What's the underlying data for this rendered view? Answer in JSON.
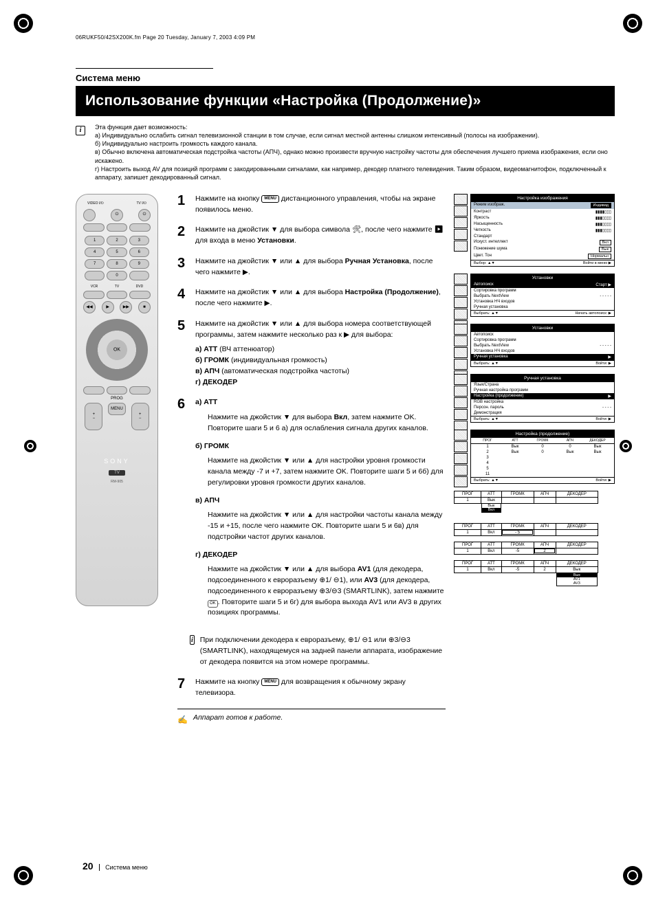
{
  "header_line": "06RUKF50/42SX200K.fm  Page 20  Tuesday, January 7, 2003  4:09 PM",
  "section": "Система меню",
  "title": "Использование функции «Настройка (Продолжение)»",
  "intro": {
    "lead": "Эта функция дает возможность:",
    "a": "а) Индивидуально ослабить сигнал телевизионной станции в том случае, если сигнал местной антенны слишком интенсивный (полосы на изображении).",
    "b": "б) Индивидуально настроить громкость каждого канала.",
    "c": "в) Обычно включена автоматическая подстройка частоты (АПЧ), однако можно произвести вручную настройку частоты для обеспечения лучшего приема изображения, если оно искажено.",
    "d": "г) Настроить выход AV для позиций программ с закодированными сигналами, как например, декодер платного телевидения. Таким образом, видеомагнитофон, подключенный к аппарату, запишет декодированный сигнал."
  },
  "steps": {
    "1": "Нажмите на кнопку MENU дистанционного управления, чтобы на экране появилось меню.",
    "2_a": "Нажмите на джойстик ▼ для выбора символа 🛠, после чего нажмите ",
    "2_b": "▶ для входа в меню ",
    "2_bold": "Установки",
    "3_a": "Нажмите на джойстик ▼ или ▲ для выбора ",
    "3_bold": "Ручная Установка",
    "3_b": ", после чего нажмите ▶.",
    "4_a": "Нажмите на джойстик ▼ или ▲ для выбора ",
    "4_bold": "Настройка (Продолжение)",
    "4_b": ", после чего нажмите ▶.",
    "5_a": "Нажмите на джойстик ▼ или ▲ для выбора номера соответствующей программы, затем нажмите несколько раз к ▶ для выбора:",
    "5_items": {
      "a": "а) АТТ (ВЧ аттенюатор)",
      "b": "б) ГРОМК (индивидуальная громкость)",
      "c": "в) АПЧ (автоматическая подстройка частоты)",
      "d": "г) ДЕКОДЕР"
    },
    "6": {
      "a_title": "а) АТТ",
      "a_body_1": "Нажмите на джойстик ▼ для выбора ",
      "a_bold": "Вкл",
      "a_body_2": ", затем нажмите OK. Повторите шаги 5 и 6 а) для ослабления сигнала других каналов.",
      "b_title": "б) ГРОМК",
      "b_body": "Нажмите на джойстик ▼ или ▲ для настройки уровня громкости канала между -7 и +7, затем нажмите OK. Повторите шаги 5 и 6б) для регулировки уровня громкости других каналов.",
      "c_title": "в) АПЧ",
      "c_body": "Нажмите на джойстик ▼ или ▲ для настройки частоты канала между -15 и +15, после чего нажмите OK. Повторите шаги 5 и 6в) для подстройки частот других каналов.",
      "d_title": "г) ДЕКОДЕР",
      "d_body": "Нажмите на джойстик ▼ или ▲ для выбора AV1 (для декодера, подсоединенного к евроразъему ⊕1/ ⊖1), или AV3 (для декодера, подсоединенного к евроразъему ⊕3/⊖3 (SMARTLINK), затем нажмите OK. Повторите шаги 5 и 6г) для выбора выхода AV1 или AV3 в других позициях программы."
    },
    "note": "При подключении декодера к евроразъему, ⊕1/ ⊖1 или ⊕3/⊖3 (SMARTLINK), находящемуся на задней панели аппарата, изображение от декодера появится на этом номере программы.",
    "7": "Нажмите на кнопку MENU для возвращения к обычному экрану телевизора.",
    "final": "Аппарат готов к работе."
  },
  "menus": {
    "m1": {
      "title": "Настройка изображения",
      "rows": [
        {
          "l": "Режим изображ.",
          "v": "Индивид",
          "sel": true
        },
        {
          "l": "Контраст",
          "v": "▮▮▮▮▯▯▯"
        },
        {
          "l": "Яркость",
          "v": "▮▮▮▯▯▯▯"
        },
        {
          "l": "Насыщенность",
          "v": "▮▮▮▯▯▯▯"
        },
        {
          "l": "Четкость",
          "v": "▮▮▮▯▯▯▯"
        },
        {
          "l": "Стандарт",
          "v": ""
        },
        {
          "l": "Искуст. интеллект",
          "v": "Вкл"
        },
        {
          "l": "Понижение шума",
          "v": "Вык"
        },
        {
          "l": "Цвет. Тон",
          "v": "Нормальн"
        }
      ],
      "footer_l": "Выбор: ▲▼",
      "footer_r": "Войти в меню ▶"
    },
    "m2": {
      "title": "Установки",
      "rows": [
        {
          "l": "Автопоиск",
          "v": "Старт ▶",
          "hl": true
        },
        {
          "l": "Сортировка программ",
          "v": ""
        },
        {
          "l": "Выбрать NextView",
          "v": "- - - - -"
        },
        {
          "l": "Установка НЧ входов",
          "v": ""
        },
        {
          "l": "Ручная установка",
          "v": ""
        }
      ],
      "footer_l": "Выбрать: ▲▼",
      "footer_r": "Начать автопоиск: ▶"
    },
    "m3": {
      "title": "Установки",
      "rows": [
        {
          "l": "Автопоиск",
          "v": ""
        },
        {
          "l": "Сортировка программ",
          "v": ""
        },
        {
          "l": "Выбрать NextView",
          "v": "- - - - -"
        },
        {
          "l": "Установка НЧ входов",
          "v": ""
        },
        {
          "l": "Ручная установка",
          "v": "▶",
          "hl": true
        }
      ],
      "footer_l": "Выбрать: ▲▼",
      "footer_r": "Войти: ▶"
    },
    "m4": {
      "title": "Ручная установка",
      "rows": [
        {
          "l": "Язык/Страна",
          "v": ""
        },
        {
          "l": "Ручная настройка программ",
          "v": ""
        },
        {
          "l": "Настройка (продолжение)",
          "v": "▶",
          "hl": true
        },
        {
          "l": "RGB настройка",
          "v": ""
        },
        {
          "l": "Персон. пароль",
          "v": "- - - -"
        },
        {
          "l": "Демонстрация",
          "v": ""
        }
      ],
      "footer_l": "Выбрать: ▲▼",
      "footer_r": "Войти: ▶"
    },
    "m5": {
      "title": "Настройка (продолжение)",
      "header_row": [
        "ПРОГ",
        "АТТ",
        "ГРОМК",
        "АПЧ",
        "ДЕКОДЕР"
      ],
      "rows": [
        [
          "1",
          "Вык",
          "0",
          "0",
          "Вык"
        ],
        [
          "2",
          "Вык",
          "0",
          "Вык",
          "Вык"
        ],
        [
          "3",
          "",
          "",
          "",
          ""
        ],
        [
          "4",
          "",
          "",
          "",
          ""
        ],
        [
          "5",
          "",
          "",
          "",
          ""
        ],
        [
          "11",
          "",
          "",
          "",
          ""
        ]
      ],
      "footer_l": "Выбрать: ▲▼",
      "footer_r": "Войти: ▶"
    },
    "tables": [
      {
        "cols": [
          "ПРОГ",
          "АТТ",
          "ГРОМК",
          "АПЧ",
          "ДЕКОДЕР"
        ],
        "row": [
          "1",
          "Вык",
          "",
          "",
          ""
        ],
        "drop_col": 1,
        "drop_vals": [
          "Вык",
          "Вкл"
        ],
        "drop_sel": 1
      },
      {
        "cols": [
          "ПРОГ",
          "АТТ",
          "ГРОМК",
          "АПЧ",
          "ДЕКОДЕР"
        ],
        "row": [
          "1",
          "Вкл",
          "- 5",
          "",
          ""
        ],
        "boxed_col": 2
      },
      {
        "cols": [
          "ПРОГ",
          "АТТ",
          "ГРОМК",
          "АПЧ",
          "ДЕКОДЕР"
        ],
        "row": [
          "1",
          "Вкл",
          "-5",
          "2",
          ""
        ],
        "boxed_col": 3
      },
      {
        "cols": [
          "ПРОГ",
          "АТТ",
          "ГРОМК",
          "АПЧ",
          "ДЕКОДЕР"
        ],
        "row": [
          "1",
          "Вкл",
          "-5",
          "2",
          "Вык"
        ],
        "drop_col": 4,
        "drop_vals": [
          "Вык",
          "AV1",
          "AV3"
        ],
        "drop_sel": 0
      }
    ]
  },
  "remote": {
    "top_labels": [
      "VIDEO I/⏻",
      "TV I/⏻"
    ],
    "num_keys": [
      "1",
      "2",
      "3",
      "4",
      "5",
      "6",
      "7",
      "8",
      "9",
      "",
      "0",
      ""
    ],
    "mid_labels": [
      "VCR",
      "TV",
      "DVD"
    ],
    "prog_label": "PROG",
    "menu_label": "MENU",
    "brand": "SONY",
    "tv_label": "TV",
    "model": "RM-905"
  },
  "footer": {
    "page": "20",
    "text": "Система меню"
  },
  "colors": {
    "black": "#000000",
    "white": "#ffffff",
    "grey": "#cccccc",
    "sel": "#b5c5d5"
  }
}
